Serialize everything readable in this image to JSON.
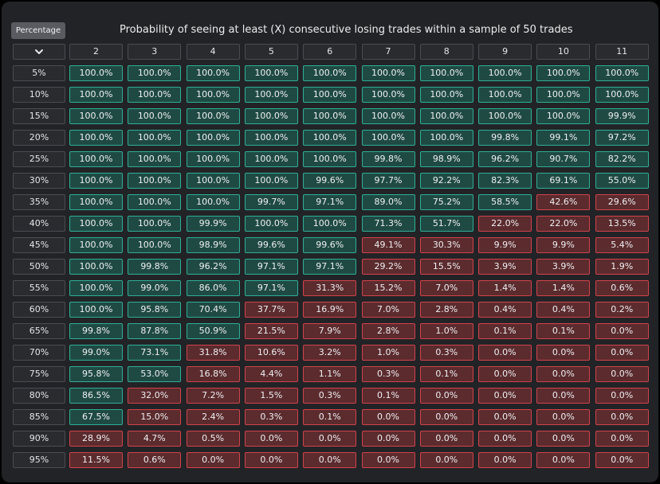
{
  "header": {
    "percentage_button": "Percentage",
    "title": "Probability of seeing at least (X) consecutive losing trades within a sample of 50 trades",
    "sort_icon": "chevron-down-icon"
  },
  "colors": {
    "green_fill": "#1f4a44",
    "green_border": "#2fae96",
    "red_fill": "#5b2b2e",
    "red_border": "#d0434b"
  },
  "table": {
    "columns": [
      "2",
      "3",
      "4",
      "5",
      "6",
      "7",
      "8",
      "9",
      "10",
      "11"
    ],
    "rows": [
      {
        "label": "5%",
        "values": [
          "100.0%",
          "100.0%",
          "100.0%",
          "100.0%",
          "100.0%",
          "100.0%",
          "100.0%",
          "100.0%",
          "100.0%",
          "100.0%"
        ],
        "status": [
          "g",
          "g",
          "g",
          "g",
          "g",
          "g",
          "g",
          "g",
          "g",
          "g"
        ]
      },
      {
        "label": "10%",
        "values": [
          "100.0%",
          "100.0%",
          "100.0%",
          "100.0%",
          "100.0%",
          "100.0%",
          "100.0%",
          "100.0%",
          "100.0%",
          "100.0%"
        ],
        "status": [
          "g",
          "g",
          "g",
          "g",
          "g",
          "g",
          "g",
          "g",
          "g",
          "g"
        ]
      },
      {
        "label": "15%",
        "values": [
          "100.0%",
          "100.0%",
          "100.0%",
          "100.0%",
          "100.0%",
          "100.0%",
          "100.0%",
          "100.0%",
          "100.0%",
          "99.9%"
        ],
        "status": [
          "g",
          "g",
          "g",
          "g",
          "g",
          "g",
          "g",
          "g",
          "g",
          "g"
        ]
      },
      {
        "label": "20%",
        "values": [
          "100.0%",
          "100.0%",
          "100.0%",
          "100.0%",
          "100.0%",
          "100.0%",
          "100.0%",
          "99.8%",
          "99.1%",
          "97.2%"
        ],
        "status": [
          "g",
          "g",
          "g",
          "g",
          "g",
          "g",
          "g",
          "g",
          "g",
          "g"
        ]
      },
      {
        "label": "25%",
        "values": [
          "100.0%",
          "100.0%",
          "100.0%",
          "100.0%",
          "100.0%",
          "99.8%",
          "98.9%",
          "96.2%",
          "90.7%",
          "82.2%"
        ],
        "status": [
          "g",
          "g",
          "g",
          "g",
          "g",
          "g",
          "g",
          "g",
          "g",
          "g"
        ]
      },
      {
        "label": "30%",
        "values": [
          "100.0%",
          "100.0%",
          "100.0%",
          "100.0%",
          "99.6%",
          "97.7%",
          "92.2%",
          "82.3%",
          "69.1%",
          "55.0%"
        ],
        "status": [
          "g",
          "g",
          "g",
          "g",
          "g",
          "g",
          "g",
          "g",
          "g",
          "g"
        ]
      },
      {
        "label": "35%",
        "values": [
          "100.0%",
          "100.0%",
          "100.0%",
          "99.7%",
          "97.1%",
          "89.0%",
          "75.2%",
          "58.5%",
          "42.6%",
          "29.6%"
        ],
        "status": [
          "g",
          "g",
          "g",
          "g",
          "g",
          "g",
          "g",
          "g",
          "r",
          "r"
        ]
      },
      {
        "label": "40%",
        "values": [
          "100.0%",
          "100.0%",
          "99.9%",
          "100.0%",
          "100.0%",
          "71.3%",
          "51.7%",
          "22.0%",
          "22.0%",
          "13.5%"
        ],
        "status": [
          "g",
          "g",
          "g",
          "g",
          "g",
          "g",
          "g",
          "r",
          "r",
          "r"
        ]
      },
      {
        "label": "45%",
        "values": [
          "100.0%",
          "100.0%",
          "98.9%",
          "99.6%",
          "99.6%",
          "49.1%",
          "30.3%",
          "9.9%",
          "9.9%",
          "5.4%"
        ],
        "status": [
          "g",
          "g",
          "g",
          "g",
          "g",
          "r",
          "r",
          "r",
          "r",
          "r"
        ]
      },
      {
        "label": "50%",
        "values": [
          "100.0%",
          "99.8%",
          "96.2%",
          "97.1%",
          "97.1%",
          "29.2%",
          "15.5%",
          "3.9%",
          "3.9%",
          "1.9%"
        ],
        "status": [
          "g",
          "g",
          "g",
          "g",
          "g",
          "r",
          "r",
          "r",
          "r",
          "r"
        ]
      },
      {
        "label": "55%",
        "values": [
          "100.0%",
          "99.0%",
          "86.0%",
          "97.1%",
          "31.3%",
          "15.2%",
          "7.0%",
          "1.4%",
          "1.4%",
          "0.6%"
        ],
        "status": [
          "g",
          "g",
          "g",
          "g",
          "r",
          "r",
          "r",
          "r",
          "r",
          "r"
        ]
      },
      {
        "label": "60%",
        "values": [
          "100.0%",
          "95.8%",
          "70.4%",
          "37.7%",
          "16.9%",
          "7.0%",
          "2.8%",
          "0.4%",
          "0.4%",
          "0.2%"
        ],
        "status": [
          "g",
          "g",
          "g",
          "r",
          "r",
          "r",
          "r",
          "r",
          "r",
          "r"
        ]
      },
      {
        "label": "65%",
        "values": [
          "99.8%",
          "87.8%",
          "50.9%",
          "21.5%",
          "7.9%",
          "2.8%",
          "1.0%",
          "0.1%",
          "0.1%",
          "0.0%"
        ],
        "status": [
          "g",
          "g",
          "g",
          "r",
          "r",
          "r",
          "r",
          "r",
          "r",
          "r"
        ]
      },
      {
        "label": "70%",
        "values": [
          "99.0%",
          "73.1%",
          "31.8%",
          "10.6%",
          "3.2%",
          "1.0%",
          "0.3%",
          "0.0%",
          "0.0%",
          "0.0%"
        ],
        "status": [
          "g",
          "g",
          "r",
          "r",
          "r",
          "r",
          "r",
          "r",
          "r",
          "r"
        ]
      },
      {
        "label": "75%",
        "values": [
          "95.8%",
          "53.0%",
          "16.8%",
          "4.4%",
          "1.1%",
          "0.3%",
          "0.1%",
          "0.0%",
          "0.0%",
          "0.0%"
        ],
        "status": [
          "g",
          "g",
          "r",
          "r",
          "r",
          "r",
          "r",
          "r",
          "r",
          "r"
        ]
      },
      {
        "label": "80%",
        "values": [
          "86.5%",
          "32.0%",
          "7.2%",
          "1.5%",
          "0.3%",
          "0.1%",
          "0.0%",
          "0.0%",
          "0.0%",
          "0.0%"
        ],
        "status": [
          "g",
          "r",
          "r",
          "r",
          "r",
          "r",
          "r",
          "r",
          "r",
          "r"
        ]
      },
      {
        "label": "85%",
        "values": [
          "67.5%",
          "15.0%",
          "2.4%",
          "0.3%",
          "0.1%",
          "0.0%",
          "0.0%",
          "0.0%",
          "0.0%",
          "0.0%"
        ],
        "status": [
          "g",
          "r",
          "r",
          "r",
          "r",
          "r",
          "r",
          "r",
          "r",
          "r"
        ]
      },
      {
        "label": "90%",
        "values": [
          "28.9%",
          "4.7%",
          "0.5%",
          "0.0%",
          "0.0%",
          "0.0%",
          "0.0%",
          "0.0%",
          "0.0%",
          "0.0%"
        ],
        "status": [
          "r",
          "r",
          "r",
          "r",
          "r",
          "r",
          "r",
          "r",
          "r",
          "r"
        ]
      },
      {
        "label": "95%",
        "values": [
          "11.5%",
          "0.6%",
          "0.0%",
          "0.0%",
          "0.0%",
          "0.0%",
          "0.0%",
          "0.0%",
          "0.0%",
          "0.0%"
        ],
        "status": [
          "r",
          "r",
          "r",
          "r",
          "r",
          "r",
          "r",
          "r",
          "r",
          "r"
        ]
      }
    ]
  }
}
